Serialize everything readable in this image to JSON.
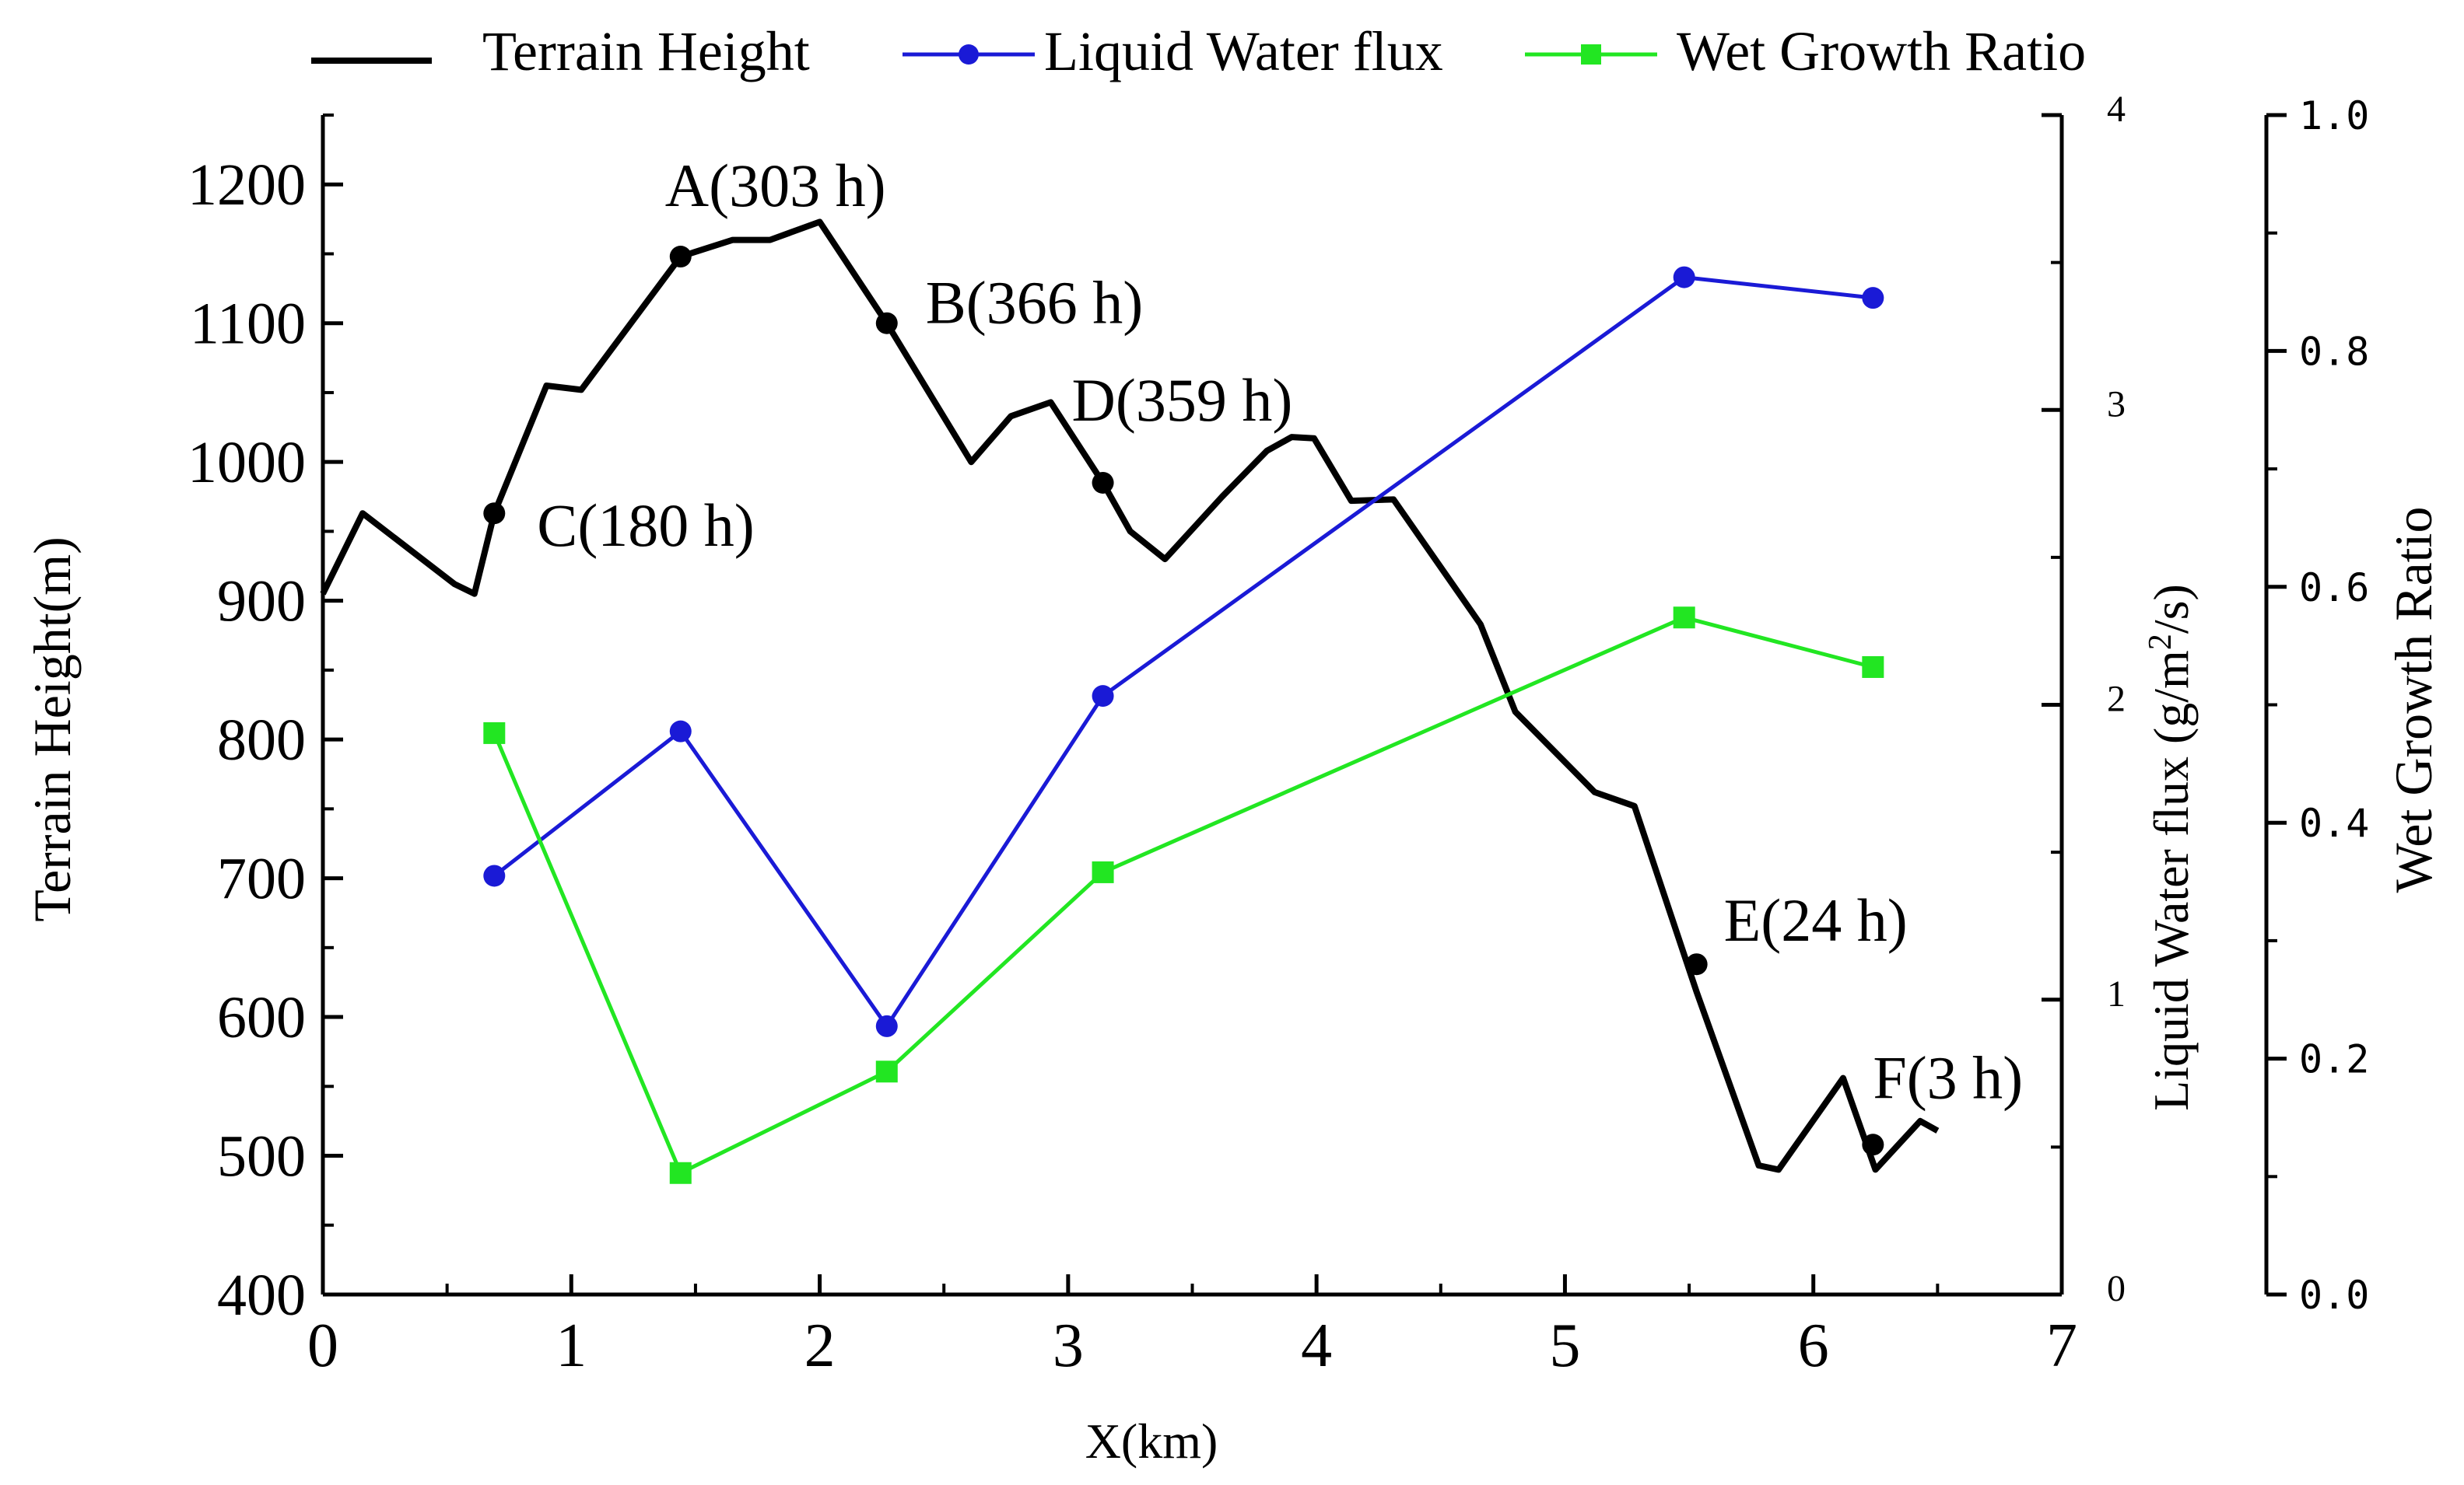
{
  "chart_data": {
    "type": "line",
    "legend": {
      "position": "top",
      "entries": [
        "Terrain Height",
        "Liquid Water flux",
        "Wet Growth Ratio"
      ]
    },
    "x_axis": {
      "label": "X(km)",
      "range": [
        0,
        7
      ],
      "ticks": [
        0,
        1,
        2,
        3,
        4,
        5,
        6,
        7
      ],
      "tick_labels": [
        "0",
        "1",
        "2",
        "3",
        "4",
        "5",
        "6",
        "7"
      ]
    },
    "y_axis_left": {
      "label": "Terrain Height(m)",
      "range": [
        400,
        1250
      ],
      "ticks": [
        400,
        500,
        600,
        700,
        800,
        900,
        1000,
        1100,
        1200
      ],
      "tick_labels": [
        "400",
        "500",
        "600",
        "700",
        "800",
        "900",
        "1000",
        "1100",
        "1200"
      ]
    },
    "y_axis_right1": {
      "label": "Liquid Water flux (g/m2/s)",
      "label_main": "Liquid Water flux (g/m",
      "label_sup": "2",
      "label_end": "/s)",
      "range": [
        0,
        4
      ],
      "ticks": [
        0,
        1,
        2,
        3,
        4
      ],
      "tick_labels": [
        "0",
        "1",
        "2",
        "3",
        "4"
      ]
    },
    "y_axis_right2": {
      "label": "Wet Growth Ratio",
      "range": [
        0.0,
        1.0
      ],
      "ticks": [
        0.0,
        0.2,
        0.4,
        0.6,
        0.8,
        1.0
      ],
      "tick_labels": [
        "0.0",
        "0.2",
        "0.4",
        "0.6",
        "0.8",
        "1.0"
      ]
    },
    "series": [
      {
        "name": "Terrain Height",
        "axis": "left",
        "color": "#000000",
        "x": [
          0,
          0.16,
          0.53,
          0.61,
          0.69,
          0.9,
          1.04,
          1.44,
          1.65,
          1.8,
          2.0,
          2.27,
          2.61,
          2.77,
          2.93,
          3.14,
          3.25,
          3.39,
          3.62,
          3.8,
          3.9,
          3.99,
          4.14,
          4.31,
          4.66,
          4.8,
          5.12,
          5.28,
          5.53,
          5.78,
          5.86,
          6.12,
          6.25,
          6.43,
          6.5
        ],
        "y": [
          905,
          963,
          912,
          905,
          963,
          1055,
          1052,
          1148,
          1160,
          1160,
          1173,
          1100,
          1000,
          1033,
          1043,
          985,
          950,
          930,
          975,
          1008,
          1018,
          1017,
          972,
          973,
          883,
          820,
          762,
          752,
          618,
          493,
          490,
          556,
          490,
          525,
          518
        ]
      },
      {
        "name": "Liquid Water flux",
        "axis": "right1",
        "color": "#1a1ad6",
        "marker": "circle",
        "x": [
          0.69,
          1.44,
          2.27,
          3.14,
          5.48,
          6.24
        ],
        "y": [
          1.42,
          1.91,
          0.91,
          2.03,
          3.45,
          3.38
        ]
      },
      {
        "name": "Wet Growth Ratio",
        "axis": "right2",
        "color": "#22e622",
        "marker": "square",
        "x": [
          0.69,
          1.44,
          2.27,
          3.14,
          5.48,
          6.24
        ],
        "y": [
          0.476,
          0.103,
          0.189,
          0.358,
          0.574,
          0.532
        ]
      }
    ],
    "annotations": [
      {
        "label": "A(303 h)",
        "x": 1.44,
        "y": 1148
      },
      {
        "label": "B(366 h)",
        "x": 2.27,
        "y": 1100
      },
      {
        "label": "C(180 h)",
        "x": 0.69,
        "y": 963
      },
      {
        "label": "D(359 h)",
        "x": 3.14,
        "y": 985
      },
      {
        "label": "E(24 h)",
        "x": 5.53,
        "y": 638
      },
      {
        "label": "F(3 h)",
        "x": 6.24,
        "y": 508
      }
    ]
  }
}
